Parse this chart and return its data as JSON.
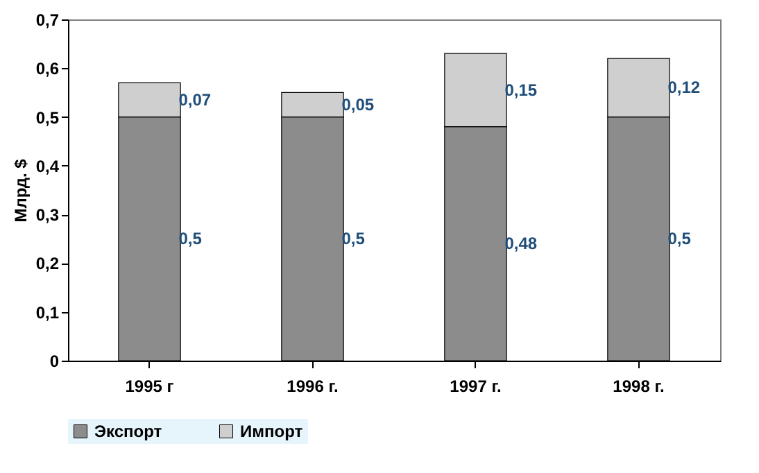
{
  "chart_data": {
    "type": "bar",
    "stacked": true,
    "ylabel": "Млрд. $",
    "categories": [
      "1995 г",
      "1996 г.",
      "1997 г.",
      "1998 г."
    ],
    "series": [
      {
        "name": "Экспорт",
        "color": "#8c8c8c",
        "values": [
          0.5,
          0.5,
          0.48,
          0.5
        ],
        "value_labels": [
          "0,5",
          "0,5",
          "0,48",
          "0,5"
        ]
      },
      {
        "name": "Импорт",
        "color": "#cfcfcf",
        "values": [
          0.07,
          0.05,
          0.15,
          0.12
        ],
        "value_labels": [
          "0,07",
          "0,05",
          "0,15",
          "0,12"
        ]
      }
    ],
    "ylim": [
      0,
      0.7
    ],
    "yticks": [
      {
        "value": 0,
        "label": "0"
      },
      {
        "value": 0.1,
        "label": "0,1"
      },
      {
        "value": 0.2,
        "label": "0,2"
      },
      {
        "value": 0.3,
        "label": "0,3"
      },
      {
        "value": 0.4,
        "label": "0,4"
      },
      {
        "value": 0.5,
        "label": "0,5"
      },
      {
        "value": 0.6,
        "label": "0,6"
      },
      {
        "value": 0.7,
        "label": "0,7"
      }
    ],
    "grid": false,
    "legend": "bottom"
  }
}
